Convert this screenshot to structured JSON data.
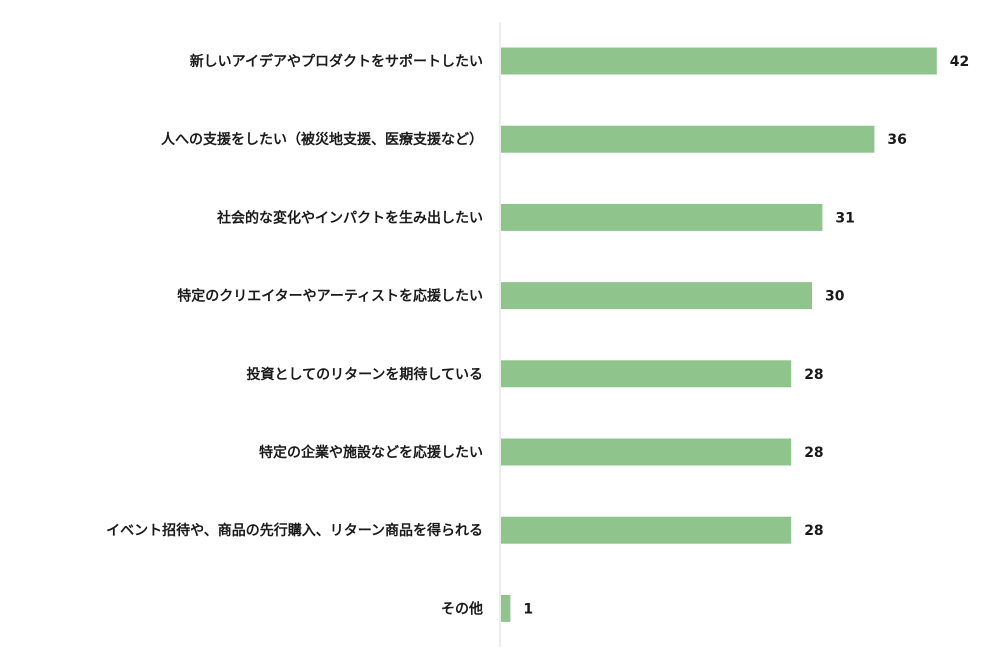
{
  "chart_data": {
    "type": "bar",
    "orientation": "horizontal",
    "categories": [
      "新しいアイデアやプロダクトをサポートしたい",
      "人への支援をしたい（被災地支援、医療支援など）",
      "社会的な変化やインパクトを生み出したい",
      "特定のクリエイターやアーティストを応援したい",
      "投資としてのリターンを期待している",
      "特定の企業や施設などを応援したい",
      "イベント招待や、商品の先行購入、リターン商品を得られる",
      "その他"
    ],
    "values": [
      42,
      36,
      31,
      30,
      28,
      28,
      28,
      1
    ],
    "value_labels": [
      "42",
      "36",
      "31",
      "30",
      "28",
      "28",
      "28",
      "1"
    ],
    "title": "",
    "xlabel": "",
    "ylabel": "",
    "xlim": [
      0,
      45
    ],
    "grid": false,
    "legend": "none",
    "colors": {
      "bar": "#8fc58c",
      "axis": "#d9d9d9",
      "text": "#1a1a1a"
    }
  }
}
